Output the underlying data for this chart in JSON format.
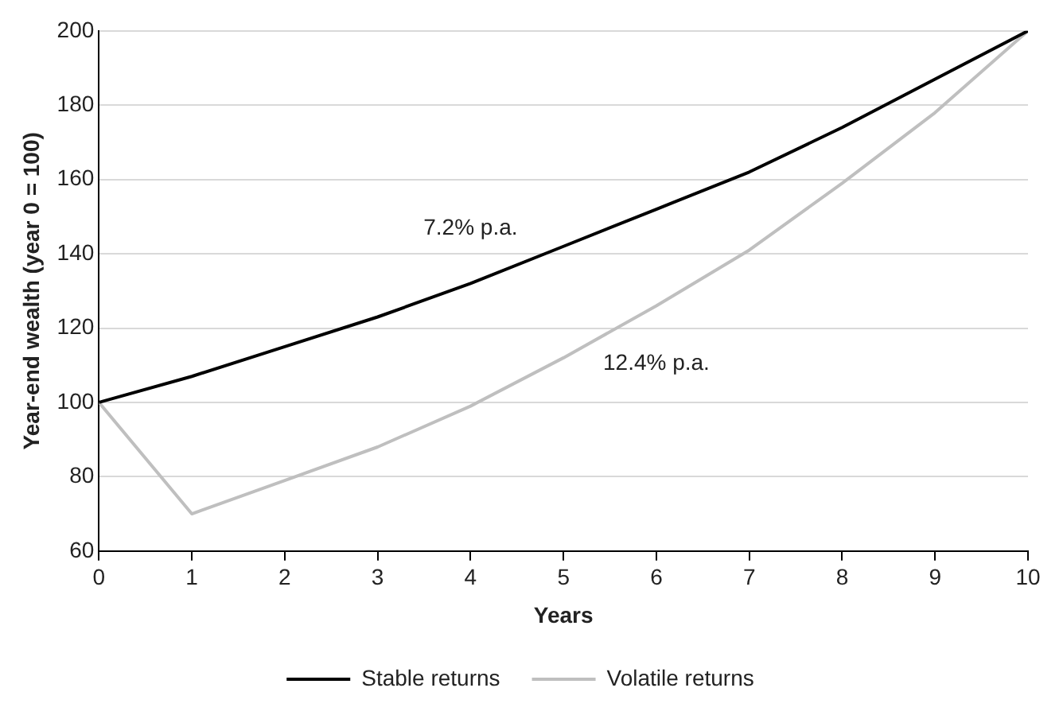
{
  "chart_data": {
    "type": "line",
    "xlabel": "Years",
    "ylabel": "Year-end wealth (year 0 = 100)",
    "x": [
      0,
      1,
      2,
      3,
      4,
      5,
      6,
      7,
      8,
      9,
      10
    ],
    "series": [
      {
        "name": "Stable returns",
        "color": "#000000",
        "values": [
          100,
          107,
          115,
          123,
          132,
          142,
          152,
          162,
          174,
          187,
          200
        ]
      },
      {
        "name": "Volatile returns",
        "color": "#bfbfbf",
        "values": [
          100,
          70,
          79,
          88,
          99,
          112,
          126,
          141,
          159,
          178,
          200
        ]
      }
    ],
    "xlim": [
      0,
      10
    ],
    "xticks": [
      0,
      1,
      2,
      3,
      4,
      5,
      6,
      7,
      8,
      9,
      10
    ],
    "ylim": [
      60,
      200
    ],
    "yticks": [
      60,
      80,
      100,
      120,
      140,
      160,
      180,
      200
    ],
    "grid": "y",
    "legend": "bottom",
    "marker": "none",
    "line_style": "solid",
    "annotations": [
      "7.2% p.a.",
      "12.4% p.a."
    ]
  }
}
